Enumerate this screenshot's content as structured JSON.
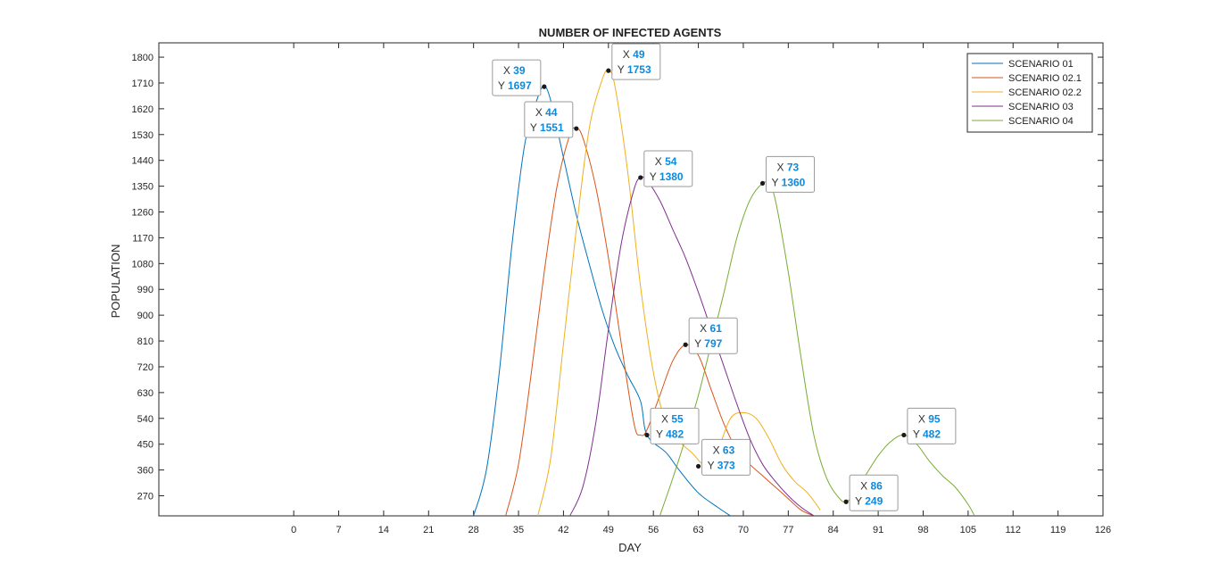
{
  "chart_data": {
    "type": "line",
    "title": "NUMBER OF INFECTED AGENTS",
    "xlabel": "DAY",
    "ylabel": "POPULATION",
    "xlim": [
      -21,
      126
    ],
    "ylim": [
      200,
      1850
    ],
    "xticks": [
      0,
      7,
      14,
      21,
      28,
      35,
      42,
      49,
      56,
      63,
      70,
      77,
      84,
      91,
      98,
      105,
      112,
      119,
      126
    ],
    "yticks": [
      270,
      360,
      450,
      540,
      630,
      720,
      810,
      900,
      990,
      1080,
      1170,
      1260,
      1350,
      1440,
      1530,
      1620,
      1710,
      1800
    ],
    "legend_position": "top-right",
    "grid": false,
    "series": [
      {
        "name": "SCENARIO 01",
        "color": "#0072BD",
        "x": [
          28,
          30,
          32,
          34,
          36,
          38,
          39,
          40,
          42,
          44,
          46,
          48,
          50,
          52,
          54,
          55,
          58,
          60,
          63,
          66,
          68
        ],
        "y": [
          200,
          360,
          700,
          1150,
          1500,
          1660,
          1697,
          1650,
          1450,
          1250,
          1080,
          920,
          790,
          690,
          600,
          482,
          420,
          360,
          280,
          230,
          200
        ]
      },
      {
        "name": "SCENARIO 02.1",
        "color": "#D95319",
        "x": [
          33,
          35,
          37,
          39,
          41,
          43,
          44,
          45,
          47,
          49,
          51,
          53,
          54,
          55,
          57,
          59,
          61,
          63,
          65,
          67,
          69,
          71,
          73,
          75,
          77,
          79,
          81
        ],
        "y": [
          200,
          380,
          700,
          1050,
          1350,
          1530,
          1551,
          1520,
          1350,
          1100,
          800,
          520,
          482,
          500,
          620,
          740,
          797,
          760,
          640,
          520,
          430,
          380,
          340,
          300,
          260,
          220,
          200
        ]
      },
      {
        "name": "SCENARIO 02.2",
        "color": "#EDB120",
        "x": [
          38,
          40,
          42,
          44,
          46,
          48,
          49,
          50,
          52,
          54,
          56,
          58,
          60,
          62,
          64,
          66,
          68,
          70,
          72,
          74,
          76,
          78,
          80,
          82
        ],
        "y": [
          200,
          400,
          800,
          1200,
          1550,
          1720,
          1753,
          1700,
          1400,
          1000,
          700,
          520,
          460,
          420,
          380,
          430,
          540,
          560,
          540,
          470,
          380,
          320,
          280,
          220
        ]
      },
      {
        "name": "SCENARIO 03",
        "color": "#7E2F8E",
        "x": [
          43,
          45,
          47,
          49,
          51,
          53,
          54,
          55,
          57,
          59,
          61,
          63,
          65,
          67,
          69,
          71,
          73,
          75,
          77,
          79,
          81
        ],
        "y": [
          200,
          300,
          520,
          850,
          1150,
          1340,
          1380,
          1370,
          1300,
          1200,
          1100,
          980,
          850,
          720,
          590,
          470,
          380,
          320,
          270,
          230,
          200
        ]
      },
      {
        "name": "SCENARIO 04",
        "color": "#77AC30",
        "x": [
          57,
          59,
          61,
          63,
          65,
          67,
          69,
          71,
          73,
          74,
          75,
          77,
          79,
          81,
          83,
          85,
          86,
          87,
          89,
          91,
          93,
          95,
          97,
          99,
          101,
          103,
          105,
          106
        ],
        "y": [
          200,
          330,
          470,
          620,
          800,
          980,
          1170,
          1300,
          1360,
          1355,
          1300,
          1050,
          750,
          480,
          330,
          260,
          249,
          270,
          340,
          410,
          460,
          482,
          450,
          390,
          340,
          300,
          240,
          200
        ]
      }
    ],
    "datatips": [
      {
        "x": 39,
        "y": 1697,
        "x_text": "39",
        "y_text": "1697",
        "side": "left"
      },
      {
        "x": 44,
        "y": 1551,
        "x_text": "44",
        "y_text": "1551",
        "side": "left"
      },
      {
        "x": 49,
        "y": 1753,
        "x_text": "49",
        "y_text": "1753",
        "side": "right"
      },
      {
        "x": 54,
        "y": 1380,
        "x_text": "54",
        "y_text": "1380",
        "side": "right"
      },
      {
        "x": 61,
        "y": 797,
        "x_text": "61",
        "y_text": "797",
        "side": "right"
      },
      {
        "x": 55,
        "y": 482,
        "x_text": "55",
        "y_text": "482",
        "side": "right"
      },
      {
        "x": 63,
        "y": 373,
        "x_text": "63",
        "y_text": "373",
        "side": "right"
      },
      {
        "x": 73,
        "y": 1360,
        "x_text": "73",
        "y_text": "1360",
        "side": "right"
      },
      {
        "x": 86,
        "y": 249,
        "x_text": "86",
        "y_text": "249",
        "side": "right"
      },
      {
        "x": 95,
        "y": 482,
        "x_text": "95",
        "y_text": "482",
        "side": "right"
      }
    ]
  }
}
